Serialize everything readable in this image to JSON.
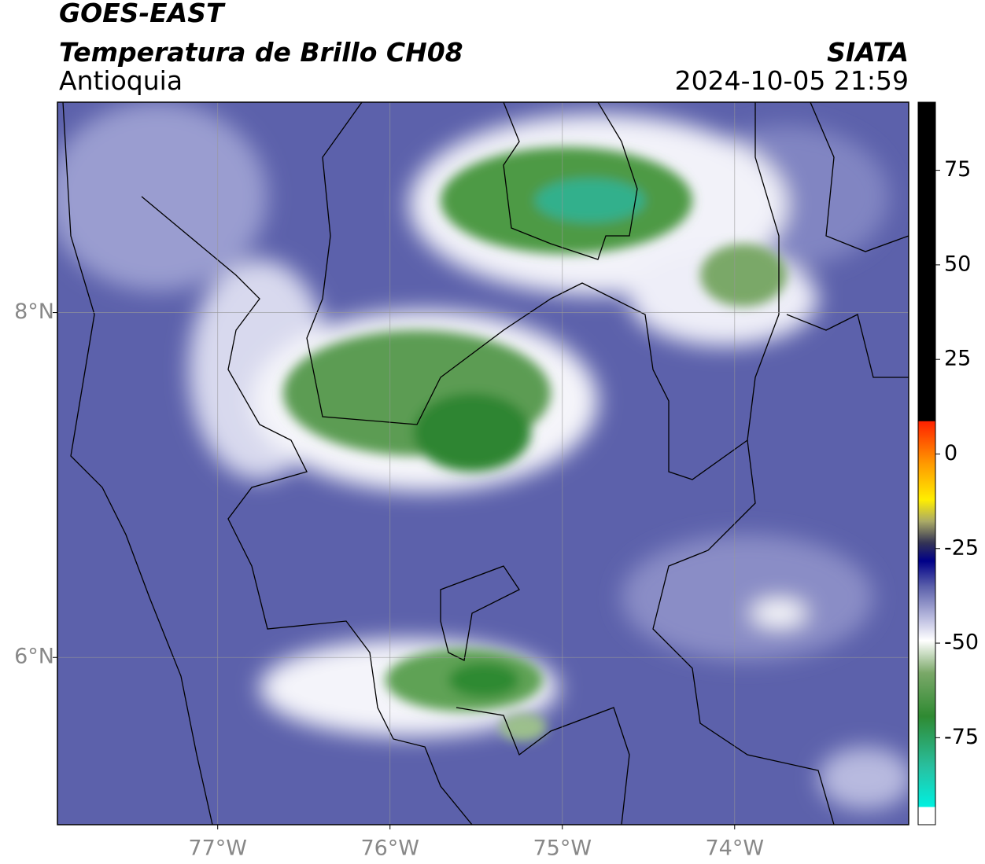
{
  "header": {
    "title": "GOES-EAST",
    "subtitle": "Temperatura de Brillo CH08",
    "region": "Antioquia",
    "source": "SIATA",
    "datetime": "2024-10-05 21:59"
  },
  "map": {
    "xlim": [
      -77.93,
      -72.99
    ],
    "ylim": [
      5.03,
      9.22
    ],
    "xticks": [
      {
        "value": -77,
        "label": "77°W"
      },
      {
        "value": -76,
        "label": "76°W"
      },
      {
        "value": -75,
        "label": "75°W"
      },
      {
        "value": -74,
        "label": "74°W"
      }
    ],
    "yticks": [
      {
        "value": 8,
        "label": "8°N"
      },
      {
        "value": 6,
        "label": "6°N"
      }
    ],
    "grid": true
  },
  "colorbar": {
    "lim": [
      -98,
      93
    ],
    "ticks": [
      75,
      50,
      25,
      0,
      -25,
      -50,
      -75
    ]
  }
}
